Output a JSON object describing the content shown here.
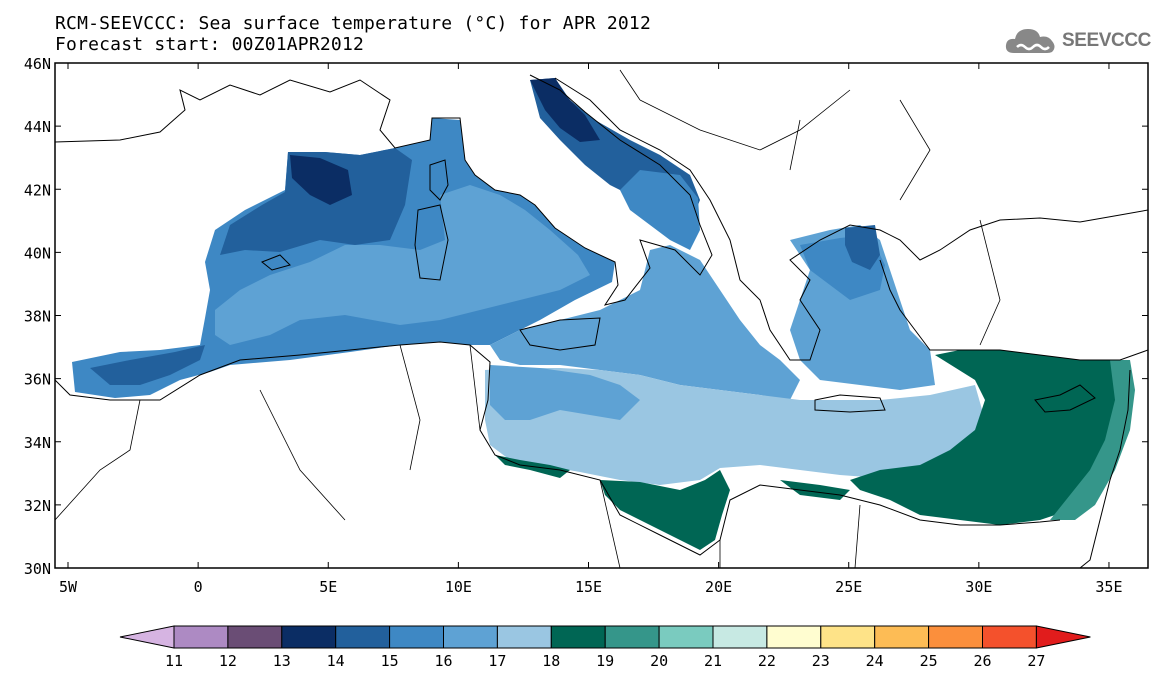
{
  "title": {
    "line1": "RCM-SEEVCCC: Sea surface temperature (°C) for APR 2012",
    "line2": "Forecast start: 00Z01APR2012"
  },
  "logo": {
    "icon": "cloud-icon",
    "text": "SEEVCCC"
  },
  "map": {
    "lon_range": [
      -5.5,
      36.5
    ],
    "lat_range": [
      30,
      46
    ],
    "lat_ticks": [
      {
        "value": 46,
        "label": "46N"
      },
      {
        "value": 44,
        "label": "44N"
      },
      {
        "value": 42,
        "label": "42N"
      },
      {
        "value": 40,
        "label": "40N"
      },
      {
        "value": 38,
        "label": "38N"
      },
      {
        "value": 36,
        "label": "36N"
      },
      {
        "value": 34,
        "label": "34N"
      },
      {
        "value": 32,
        "label": "32N"
      },
      {
        "value": 30,
        "label": "30N"
      }
    ],
    "lon_ticks": [
      {
        "value": -5,
        "label": "5W"
      },
      {
        "value": 0,
        "label": "0"
      },
      {
        "value": 5,
        "label": "5E"
      },
      {
        "value": 10,
        "label": "10E"
      },
      {
        "value": 15,
        "label": "15E"
      },
      {
        "value": 20,
        "label": "20E"
      },
      {
        "value": 25,
        "label": "25E"
      },
      {
        "value": 30,
        "label": "30E"
      },
      {
        "value": 35,
        "label": "35E"
      }
    ]
  },
  "colorbar": {
    "labels": [
      "11",
      "12",
      "13",
      "14",
      "15",
      "16",
      "17",
      "18",
      "19",
      "20",
      "21",
      "22",
      "23",
      "24",
      "25",
      "26",
      "27"
    ],
    "low_color": "#d6b4e2",
    "high_color": "#e11c1c",
    "colors": [
      "#ad8ac3",
      "#6a4d75",
      "#0b2d64",
      "#22609c",
      "#3e88c4",
      "#5ea2d4",
      "#9ac6e2",
      "#006654",
      "#35968a",
      "#7acbbf",
      "#c7e9e3",
      "#fffdd0",
      "#fee388",
      "#fdbc55",
      "#fb8f3c",
      "#f4512c"
    ]
  },
  "sst_colors": {
    "c14": "#0b2d64",
    "c15": "#22609c",
    "c16": "#3e88c4",
    "c17": "#5ea2d4",
    "c18": "#9ac6e2",
    "c19": "#006654",
    "c20": "#35968a"
  }
}
